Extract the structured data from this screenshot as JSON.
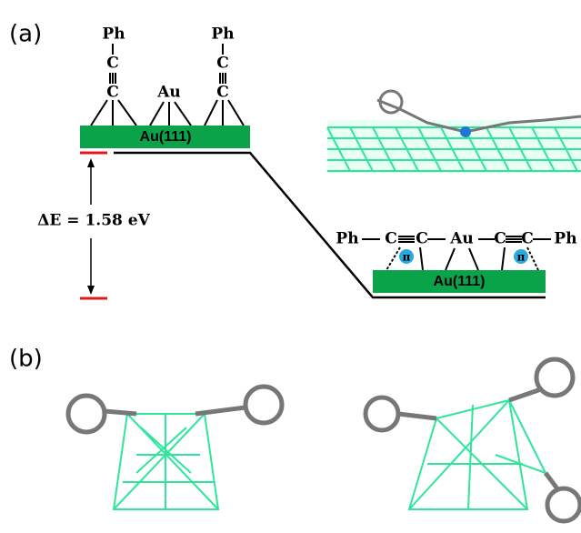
{
  "panel_a": {
    "label": "(a)",
    "left_model": {
      "ph_left": "Ph",
      "c_top_left": "C",
      "c_bottom_left": "C",
      "au": "Au",
      "ph_right": "Ph",
      "c_top_right": "C",
      "c_bottom_right": "C",
      "surface": "Au(111)"
    },
    "energy_gap": "ΔE = 1.58 eV",
    "right_model": {
      "chain": [
        "Ph",
        "C",
        "C",
        "Au",
        "C",
        "C",
        "Ph"
      ],
      "pi_left": "π",
      "pi_right": "π",
      "surface": "Au(111)"
    }
  },
  "panel_b": {
    "label": "(b)"
  }
}
